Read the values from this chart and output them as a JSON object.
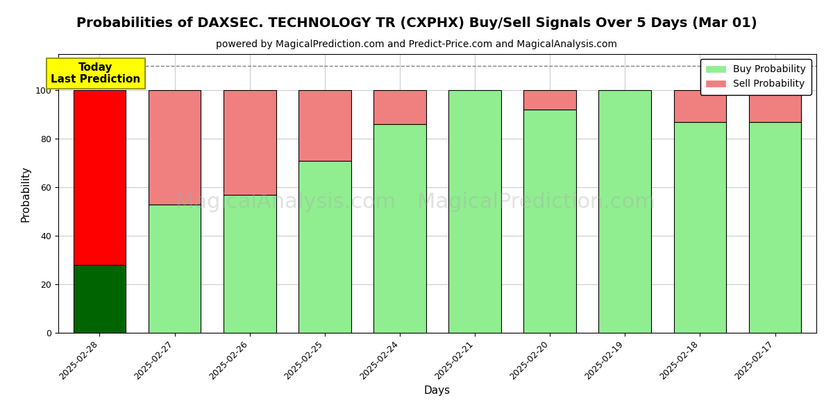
{
  "title": "Probabilities of DAXSEC. TECHNOLOGY TR (CXPHX) Buy/Sell Signals Over 5 Days (Mar 01)",
  "subtitle": "powered by MagicalPrediction.com and Predict-Price.com and MagicalAnalysis.com",
  "xlabel": "Days",
  "ylabel": "Probability",
  "categories": [
    "2025-02-28",
    "2025-02-27",
    "2025-02-26",
    "2025-02-25",
    "2025-02-24",
    "2025-02-21",
    "2025-02-20",
    "2025-02-19",
    "2025-02-18",
    "2025-02-17"
  ],
  "buy_values": [
    28,
    53,
    57,
    71,
    86,
    100,
    92,
    100,
    87,
    87
  ],
  "sell_values": [
    72,
    47,
    43,
    29,
    14,
    0,
    8,
    0,
    13,
    13
  ],
  "buy_color_normal": "#90EE90",
  "sell_color_normal": "#F08080",
  "buy_color_today": "#006400",
  "sell_color_today": "#FF0000",
  "legend_buy_color": "#90EE90",
  "legend_sell_color": "#F08080",
  "annotation_text": "Today\nLast Prediction",
  "annotation_bg": "#FFFF00",
  "dashed_line_y": 110,
  "ylim": [
    0,
    115
  ],
  "yticks": [
    0,
    20,
    40,
    60,
    80,
    100
  ],
  "grid_color": "#CCCCCC",
  "bar_edge_color": "#000000",
  "bar_width": 0.7,
  "figsize": [
    12,
    6
  ],
  "dpi": 100,
  "title_fontsize": 14,
  "subtitle_fontsize": 10,
  "label_fontsize": 11,
  "tick_fontsize": 9,
  "legend_fontsize": 10,
  "watermark1": "MagicalAnalysis.com",
  "watermark2": "MagicalPrediction.com",
  "watermark_color": "#AAAAAA",
  "watermark_fontsize": 22,
  "watermark_alpha": 0.35,
  "bg_color": "#FFFFFF"
}
